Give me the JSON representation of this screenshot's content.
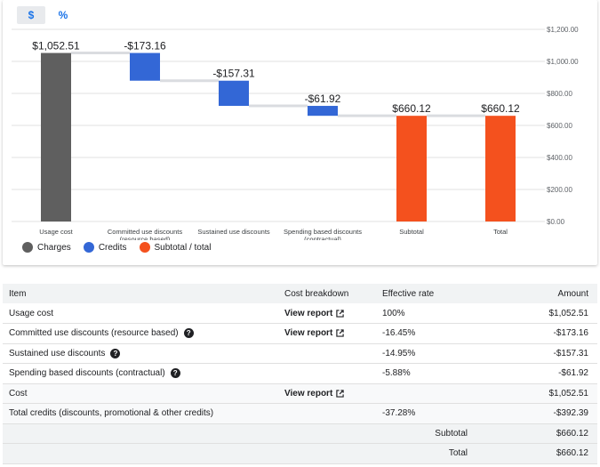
{
  "toggles": [
    {
      "label": "$",
      "active": true
    },
    {
      "label": "%",
      "active": false
    }
  ],
  "colors": {
    "charges": "#5f5f5f",
    "credits": "#3367d6",
    "subtotal": "#f4511e",
    "connector": "#dadce0"
  },
  "chart_data": {
    "type": "bar",
    "subtype": "waterfall",
    "ylim": [
      0,
      1200
    ],
    "y_ticks": [
      "$0.00",
      "$200.00",
      "$400.00",
      "$600.00",
      "$800.00",
      "$1,000.00",
      "$1,200.00"
    ],
    "y_tick_values": [
      0,
      200,
      400,
      600,
      800,
      1000,
      1200
    ],
    "grid": true,
    "legend_position": "bottom-left",
    "bars": [
      {
        "category": "Usage cost",
        "kind": "charges",
        "start": 0,
        "end": 1052.51,
        "label": "$1,052.51"
      },
      {
        "category": "Committed use discounts\n(resource based)",
        "kind": "credits",
        "start": 1052.51,
        "end": 879.35,
        "label": "-$173.16"
      },
      {
        "category": "Sustained use discounts",
        "kind": "credits",
        "start": 879.35,
        "end": 722.04,
        "label": "-$157.31"
      },
      {
        "category": "Spending based discounts\n(contractual)",
        "kind": "credits",
        "start": 722.04,
        "end": 660.12,
        "label": "-$61.92"
      },
      {
        "category": "Subtotal",
        "kind": "subtotal",
        "start": 0,
        "end": 660.12,
        "label": "$660.12"
      },
      {
        "category": "Total",
        "kind": "subtotal",
        "start": 0,
        "end": 660.12,
        "label": "$660.12"
      }
    ]
  },
  "legend": [
    {
      "label": "Charges",
      "kind": "charges"
    },
    {
      "label": "Credits",
      "kind": "credits"
    },
    {
      "label": "Subtotal / total",
      "kind": "subtotal"
    }
  ],
  "table": {
    "headers": {
      "item": "Item",
      "breakdown": "Cost breakdown",
      "rate": "Effective rate",
      "amount": "Amount"
    },
    "rows": [
      {
        "item": "Usage cost",
        "help": false,
        "report": "View report",
        "rate": "100%",
        "amount": "$1,052.51"
      },
      {
        "item": "Committed use discounts (resource based)",
        "help": true,
        "report": "View report",
        "rate": "-16.45%",
        "amount": "-$173.16"
      },
      {
        "item": "Sustained use discounts",
        "help": true,
        "report": "",
        "rate": "-14.95%",
        "amount": "-$157.31"
      },
      {
        "item": "Spending based discounts (contractual)",
        "help": true,
        "report": "",
        "rate": "-5.88%",
        "amount": "-$61.92"
      },
      {
        "item": "Cost",
        "help": false,
        "report": "View report",
        "rate": "",
        "amount": "$1,052.51"
      },
      {
        "item": "Total credits (discounts, promotional & other credits)",
        "help": false,
        "report": "",
        "rate": "-37.28%",
        "amount": "-$392.39"
      }
    ],
    "subtotal_label": "Subtotal",
    "subtotal_value": "$660.12",
    "total_label": "Total",
    "total_value": "$660.12"
  }
}
